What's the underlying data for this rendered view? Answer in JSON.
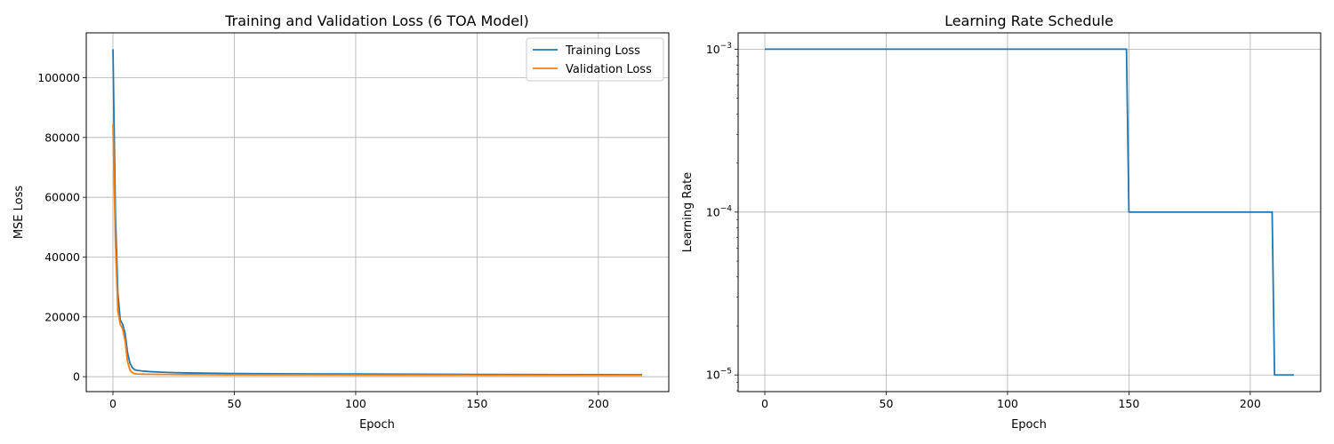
{
  "chart_data": [
    {
      "type": "line",
      "title": "Training and Validation Loss (6 TOA Model)",
      "xlabel": "Epoch",
      "ylabel": "MSE Loss",
      "xlim": [
        -11,
        229
      ],
      "ylim": [
        -5000,
        115000
      ],
      "xticks": [
        0,
        50,
        100,
        150,
        200
      ],
      "xtick_labels": [
        "0",
        "50",
        "100",
        "150",
        "200"
      ],
      "yticks": [
        0,
        20000,
        40000,
        60000,
        80000,
        100000
      ],
      "ytick_labels": [
        "0",
        "20000",
        "40000",
        "60000",
        "80000",
        "100000"
      ],
      "grid": true,
      "legend_position": "upper right",
      "series": [
        {
          "name": "Training Loss",
          "color": "#1f77b4",
          "points": [
            [
              0,
              109500
            ],
            [
              1,
              55000
            ],
            [
              2,
              28000
            ],
            [
              3,
              19000
            ],
            [
              4,
              17500
            ],
            [
              5,
              14500
            ],
            [
              6,
              8000
            ],
            [
              7,
              4500
            ],
            [
              8,
              3000
            ],
            [
              9,
              2300
            ],
            [
              10,
              2100
            ],
            [
              12,
              1900
            ],
            [
              15,
              1700
            ],
            [
              20,
              1500
            ],
            [
              25,
              1350
            ],
            [
              30,
              1250
            ],
            [
              40,
              1150
            ],
            [
              50,
              1050
            ],
            [
              75,
              950
            ],
            [
              100,
              880
            ],
            [
              125,
              820
            ],
            [
              150,
              760
            ],
            [
              175,
              710
            ],
            [
              200,
              670
            ],
            [
              218,
              640
            ]
          ]
        },
        {
          "name": "Validation Loss",
          "color": "#ff7f0e",
          "points": [
            [
              0,
              84500
            ],
            [
              1,
              45000
            ],
            [
              2,
              22000
            ],
            [
              3,
              17500
            ],
            [
              4,
              16000
            ],
            [
              5,
              12000
            ],
            [
              6,
              5000
            ],
            [
              7,
              2200
            ],
            [
              8,
              1300
            ],
            [
              9,
              1000
            ],
            [
              10,
              900
            ],
            [
              12,
              850
            ],
            [
              15,
              800
            ],
            [
              20,
              750
            ],
            [
              25,
              720
            ],
            [
              30,
              690
            ],
            [
              40,
              650
            ],
            [
              50,
              620
            ],
            [
              75,
              580
            ],
            [
              100,
              550
            ],
            [
              125,
              520
            ],
            [
              150,
              500
            ],
            [
              175,
              480
            ],
            [
              200,
              460
            ],
            [
              218,
              450
            ]
          ]
        }
      ]
    },
    {
      "type": "line",
      "title": "Learning Rate Schedule",
      "xlabel": "Epoch",
      "ylabel": "Learning Rate",
      "xlim": [
        -11,
        229
      ],
      "yscale": "log",
      "ylim": [
        7.9e-06,
        0.00126
      ],
      "xticks": [
        0,
        50,
        100,
        150,
        200
      ],
      "xtick_labels": [
        "0",
        "50",
        "100",
        "150",
        "200"
      ],
      "yticks": [
        0.001,
        0.0001,
        1e-05
      ],
      "ytick_labels": [
        {
          "base": "10",
          "exp": "−3"
        },
        {
          "base": "10",
          "exp": "−4"
        },
        {
          "base": "10",
          "exp": "−5"
        }
      ],
      "grid": true,
      "series": [
        {
          "color": "#1f77b4",
          "points": [
            [
              0,
              0.001
            ],
            [
              149,
              0.001
            ],
            [
              150,
              0.0001
            ],
            [
              209,
              0.0001
            ],
            [
              210,
              1e-05
            ],
            [
              218,
              1e-05
            ]
          ]
        }
      ]
    }
  ]
}
